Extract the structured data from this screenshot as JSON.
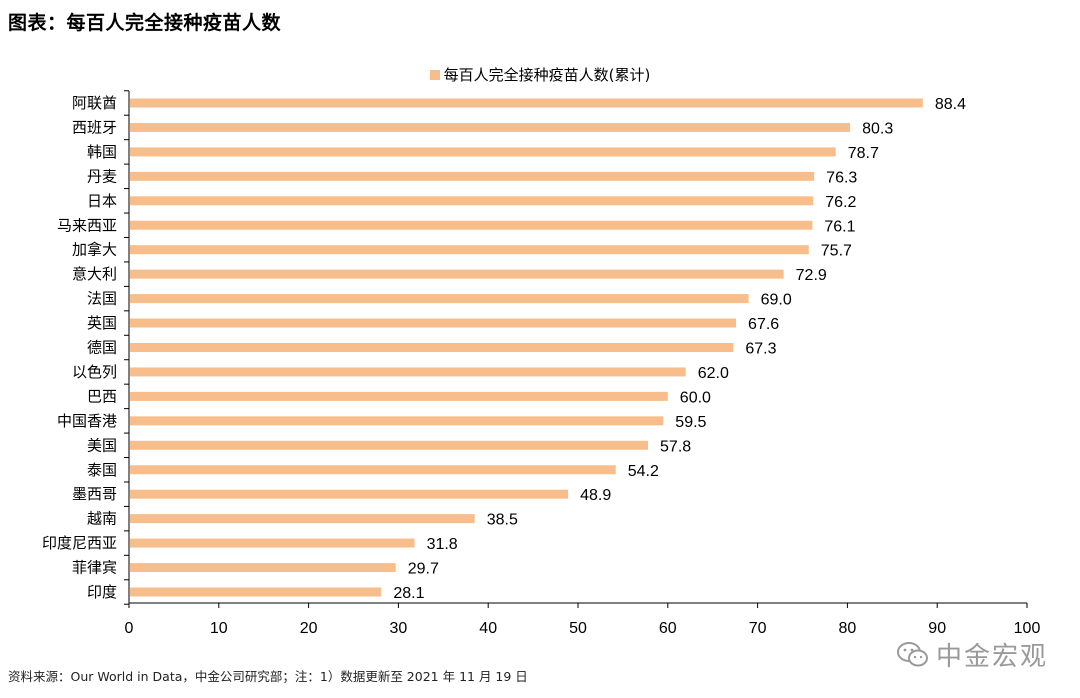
{
  "page": {
    "title": "图表：每百人完全接种疫苗人数",
    "footnote": "资料来源：Our World in Data，中金公司研究部；注：1）数据更新至 2021 年 11 月 19 日",
    "watermark": "中金宏观",
    "watermark_icon": "wechat-icon"
  },
  "colors": {
    "bar": "#F7BE8C",
    "axis": "#000000",
    "text": "#000000"
  },
  "chart_data": {
    "type": "bar",
    "orientation": "horizontal",
    "title": "图表：每百人完全接种疫苗人数",
    "legend": [
      "每百人完全接种疫苗人数(累计)"
    ],
    "legend_position": "top-center",
    "categories": [
      "阿联酋",
      "西班牙",
      "韩国",
      "丹麦",
      "日本",
      "马来西亚",
      "加拿大",
      "意大利",
      "法国",
      "英国",
      "德国",
      "以色列",
      "巴西",
      "中国香港",
      "美国",
      "泰国",
      "墨西哥",
      "越南",
      "印度尼西亚",
      "菲律宾",
      "印度"
    ],
    "series": [
      {
        "name": "每百人完全接种疫苗人数(累计)",
        "values": [
          88.4,
          80.3,
          78.7,
          76.3,
          76.2,
          76.1,
          75.7,
          72.9,
          69.0,
          67.6,
          67.3,
          62.0,
          60.0,
          59.5,
          57.8,
          54.2,
          48.9,
          38.5,
          31.8,
          29.7,
          28.1
        ]
      }
    ],
    "value_labels": [
      "88.4",
      "80.3",
      "78.7",
      "76.3",
      "76.2",
      "76.1",
      "75.7",
      "72.9",
      "69.0",
      "67.6",
      "67.3",
      "62.0",
      "60.0",
      "59.5",
      "57.8",
      "54.2",
      "48.9",
      "38.5",
      "31.8",
      "29.7",
      "28.1"
    ],
    "xlim": [
      0,
      100
    ],
    "xticks": [
      0,
      10,
      20,
      30,
      40,
      50,
      60,
      70,
      80,
      90,
      100
    ],
    "xlabel": "",
    "ylabel": "",
    "grid": false
  }
}
